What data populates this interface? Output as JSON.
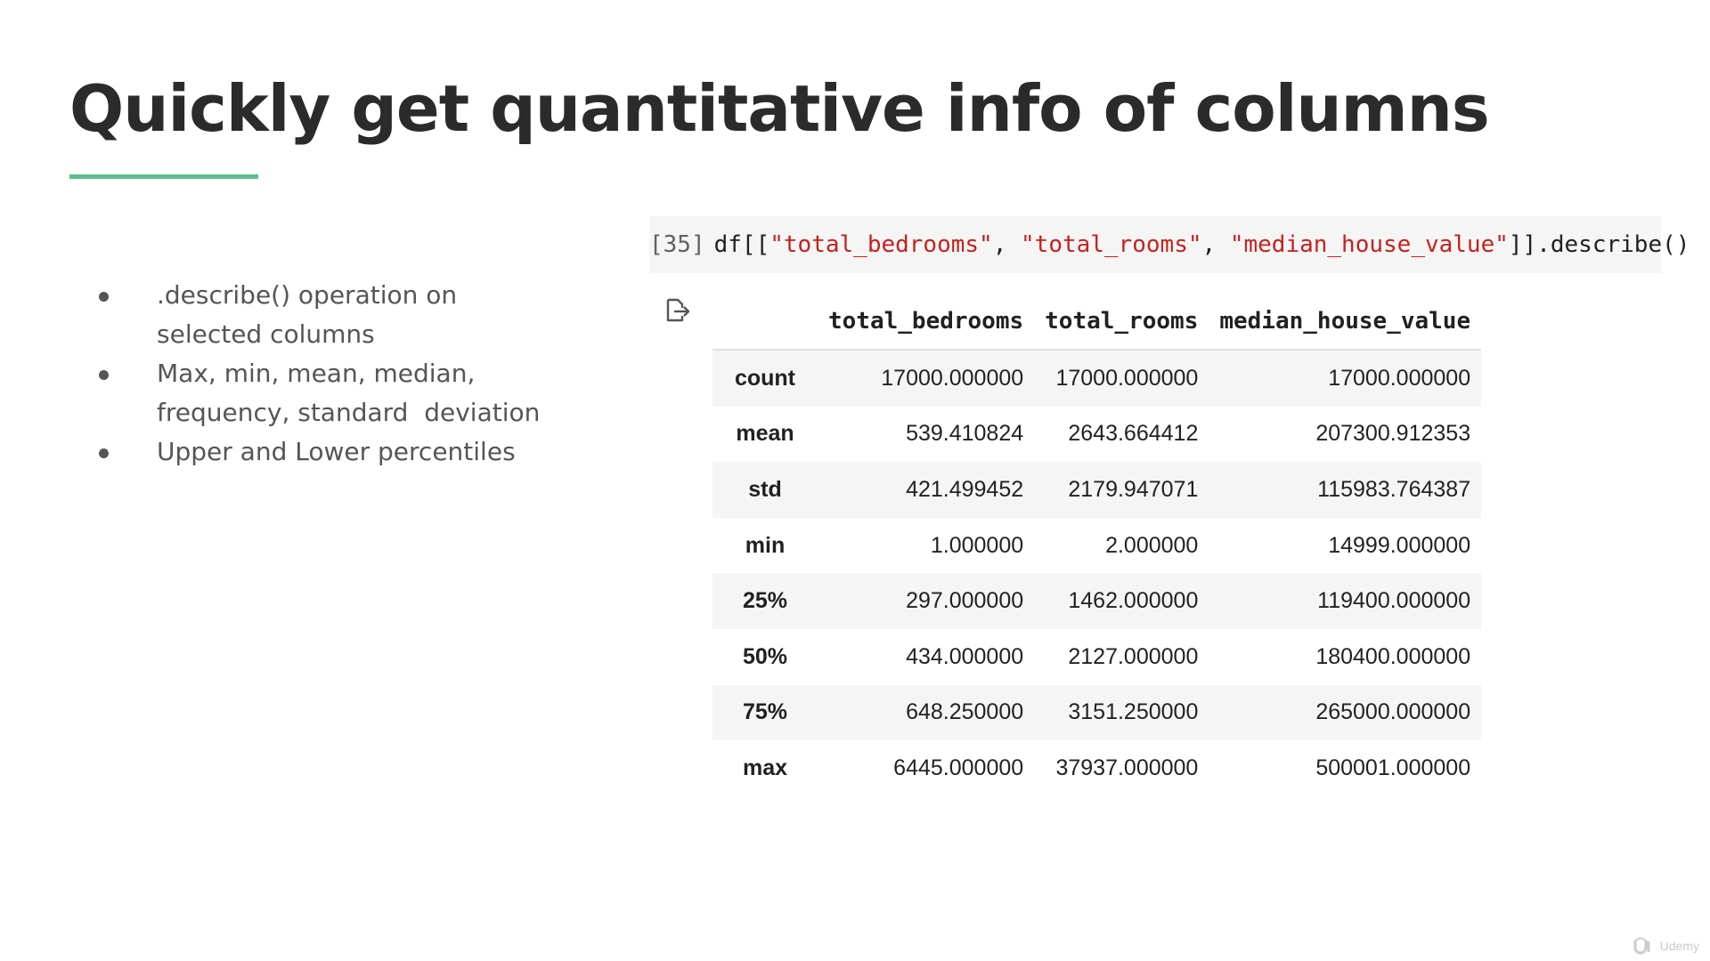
{
  "slide": {
    "title": "Quickly get quantitative info of columns",
    "accent_color": "#5bbf8f",
    "bullets": [
      ".describe() operation on\nselected columns",
      "Max, min, mean, median,\nfrequency, standard  deviation",
      "Upper and Lower percentiles"
    ]
  },
  "code_cell": {
    "prompt": "[35]",
    "code_prefix": "df[[",
    "col1": "\"total_bedrooms\"",
    "sep1": ", ",
    "col2": "\"total_rooms\"",
    "sep2": ", ",
    "col3": "\"median_house_value\"",
    "code_suffix": "]].describe()",
    "string_color": "#c5221f"
  },
  "output": {
    "icon": "output-redirect-icon",
    "columns": [
      "total_bedrooms",
      "total_rooms",
      "median_house_value"
    ],
    "rows": [
      {
        "stat": "count",
        "values": [
          "17000.000000",
          "17000.000000",
          "17000.000000"
        ]
      },
      {
        "stat": "mean",
        "values": [
          "539.410824",
          "2643.664412",
          "207300.912353"
        ]
      },
      {
        "stat": "std",
        "values": [
          "421.499452",
          "2179.947071",
          "115983.764387"
        ]
      },
      {
        "stat": "min",
        "values": [
          "1.000000",
          "2.000000",
          "14999.000000"
        ]
      },
      {
        "stat": "25%",
        "values": [
          "297.000000",
          "1462.000000",
          "119400.000000"
        ]
      },
      {
        "stat": "50%",
        "values": [
          "434.000000",
          "2127.000000",
          "180400.000000"
        ]
      },
      {
        "stat": "75%",
        "values": [
          "648.250000",
          "3151.250000",
          "265000.000000"
        ]
      },
      {
        "stat": "max",
        "values": [
          "6445.000000",
          "37937.000000",
          "500001.000000"
        ]
      }
    ]
  },
  "watermark": {
    "icon": "udemy-logo-icon",
    "text": "Udemy"
  }
}
